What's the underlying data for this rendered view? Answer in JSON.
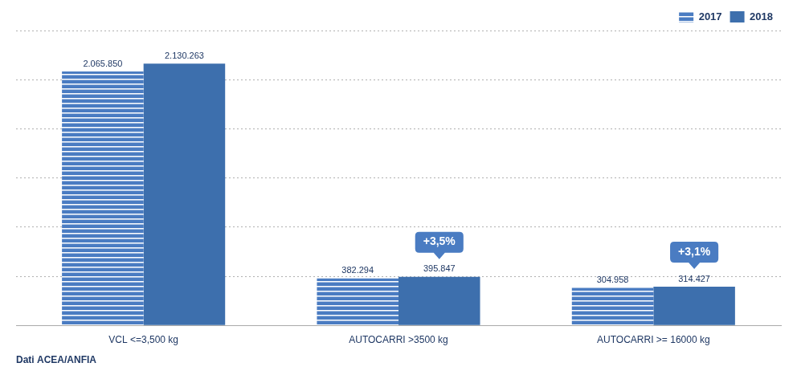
{
  "chart_data": {
    "type": "bar",
    "categories": [
      "VCL <=3,500 kg",
      "AUTOCARRI >3500 kg",
      "AUTOCARRI >= 16000 kg"
    ],
    "series": [
      {
        "name": "2017",
        "color": "#4a7cc2",
        "values": [
          2065850,
          382294,
          304958
        ],
        "value_labels": [
          "2.065.850",
          "382.294",
          "304.958"
        ]
      },
      {
        "name": "2018",
        "color": "#3d6fad",
        "values": [
          2130263,
          395847,
          314427
        ],
        "value_labels": [
          "2.130.263",
          "395.847",
          "314.427"
        ]
      }
    ],
    "ylim": [
      0,
      2400000
    ],
    "yticks": [
      0,
      400000,
      800000,
      1200000,
      1600000,
      2000000,
      2400000
    ],
    "grid": true,
    "legend": "upper right",
    "data_labels": true,
    "tick_labels": "x",
    "annotations": [
      {
        "text": "+3,5%",
        "category": "AUTOCARRI >3500 kg",
        "series": "2018",
        "color": "#4a7cc2"
      },
      {
        "text": "+3,1%",
        "category": "AUTOCARRI >= 16000 kg",
        "series": "2018",
        "color": "#4a7cc2"
      }
    ],
    "footnote": "Dati ACEA/ANFIA"
  }
}
